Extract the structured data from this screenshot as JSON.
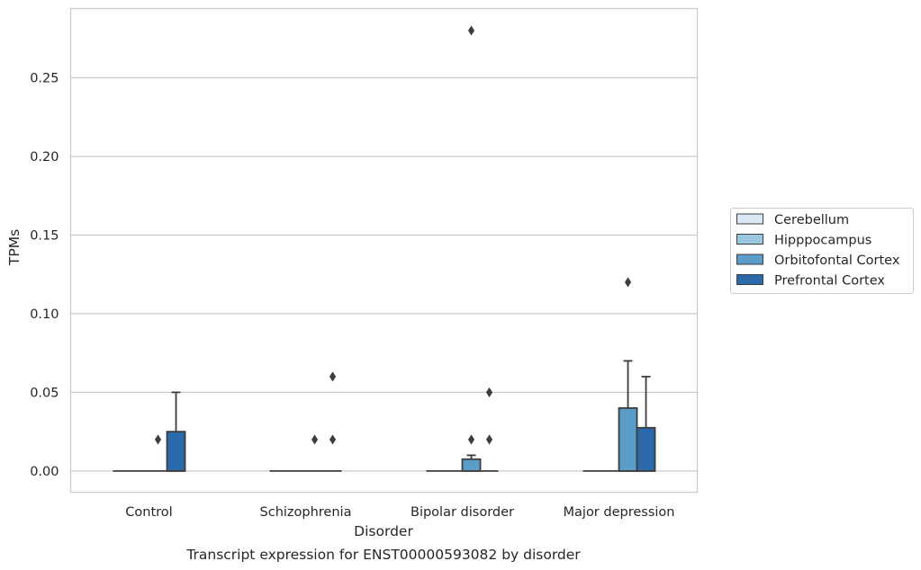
{
  "chart_data": {
    "type": "box",
    "title": "",
    "caption": "Transcript expression for ENST00000593082 by disorder",
    "xlabel": "Disorder",
    "ylabel": "TPMs",
    "ylim": [
      -0.0135,
      0.294
    ],
    "yticks": [
      "0.00",
      "0.05",
      "0.10",
      "0.15",
      "0.20",
      "0.25"
    ],
    "grid": true,
    "legend_position": "right",
    "categories": [
      "Control",
      "Schizophrenia",
      "Bipolar disorder",
      "Major depression"
    ],
    "series": [
      {
        "name": "Cerebellum",
        "color": "#dbe9f6",
        "boxes": [
          {
            "q1": 0,
            "median": 0,
            "q3": 0,
            "whisker_low": 0,
            "whisker_high": 0,
            "outliers": []
          },
          {
            "q1": 0,
            "median": 0,
            "q3": 0,
            "whisker_low": 0,
            "whisker_high": 0,
            "outliers": []
          },
          {
            "q1": 0,
            "median": 0,
            "q3": 0,
            "whisker_low": 0,
            "whisker_high": 0,
            "outliers": []
          },
          {
            "q1": 0,
            "median": 0,
            "q3": 0,
            "whisker_low": 0,
            "whisker_high": 0,
            "outliers": []
          }
        ]
      },
      {
        "name": "Hipppocampus",
        "color": "#9ac8e0",
        "boxes": [
          {
            "q1": 0,
            "median": 0,
            "q3": 0,
            "whisker_low": 0,
            "whisker_high": 0,
            "outliers": []
          },
          {
            "q1": 0,
            "median": 0,
            "q3": 0,
            "whisker_low": 0,
            "whisker_high": 0,
            "outliers": []
          },
          {
            "q1": 0,
            "median": 0,
            "q3": 0,
            "whisker_low": 0,
            "whisker_high": 0,
            "outliers": []
          },
          {
            "q1": 0,
            "median": 0,
            "q3": 0,
            "whisker_low": 0,
            "whisker_high": 0,
            "outliers": []
          }
        ]
      },
      {
        "name": "Orbitofontal Cortex",
        "color": "#5a9dc8",
        "boxes": [
          {
            "q1": 0,
            "median": 0,
            "q3": 0,
            "whisker_low": 0,
            "whisker_high": 0,
            "outliers": [
              0.02
            ]
          },
          {
            "q1": 0,
            "median": 0,
            "q3": 0,
            "whisker_low": 0,
            "whisker_high": 0,
            "outliers": [
              0.02
            ]
          },
          {
            "q1": 0,
            "median": 0,
            "q3": 0.0075,
            "whisker_low": 0,
            "whisker_high": 0.01,
            "outliers": [
              0.02,
              0.28
            ]
          },
          {
            "q1": 0,
            "median": 0,
            "q3": 0.04,
            "whisker_low": 0,
            "whisker_high": 0.07,
            "outliers": [
              0.12
            ]
          }
        ]
      },
      {
        "name": "Prefrontal Cortex",
        "color": "#2a6aaa",
        "boxes": [
          {
            "q1": 0,
            "median": 0,
            "q3": 0.025,
            "whisker_low": 0,
            "whisker_high": 0.05,
            "outliers": []
          },
          {
            "q1": 0,
            "median": 0,
            "q3": 0,
            "whisker_low": 0,
            "whisker_high": 0,
            "outliers": [
              0.02,
              0.06
            ]
          },
          {
            "q1": 0,
            "median": 0,
            "q3": 0,
            "whisker_low": 0,
            "whisker_high": 0,
            "outliers": [
              0.02,
              0.05
            ]
          },
          {
            "q1": 0,
            "median": 0,
            "q3": 0.0275,
            "whisker_low": 0,
            "whisker_high": 0.06,
            "outliers": []
          }
        ]
      }
    ]
  }
}
